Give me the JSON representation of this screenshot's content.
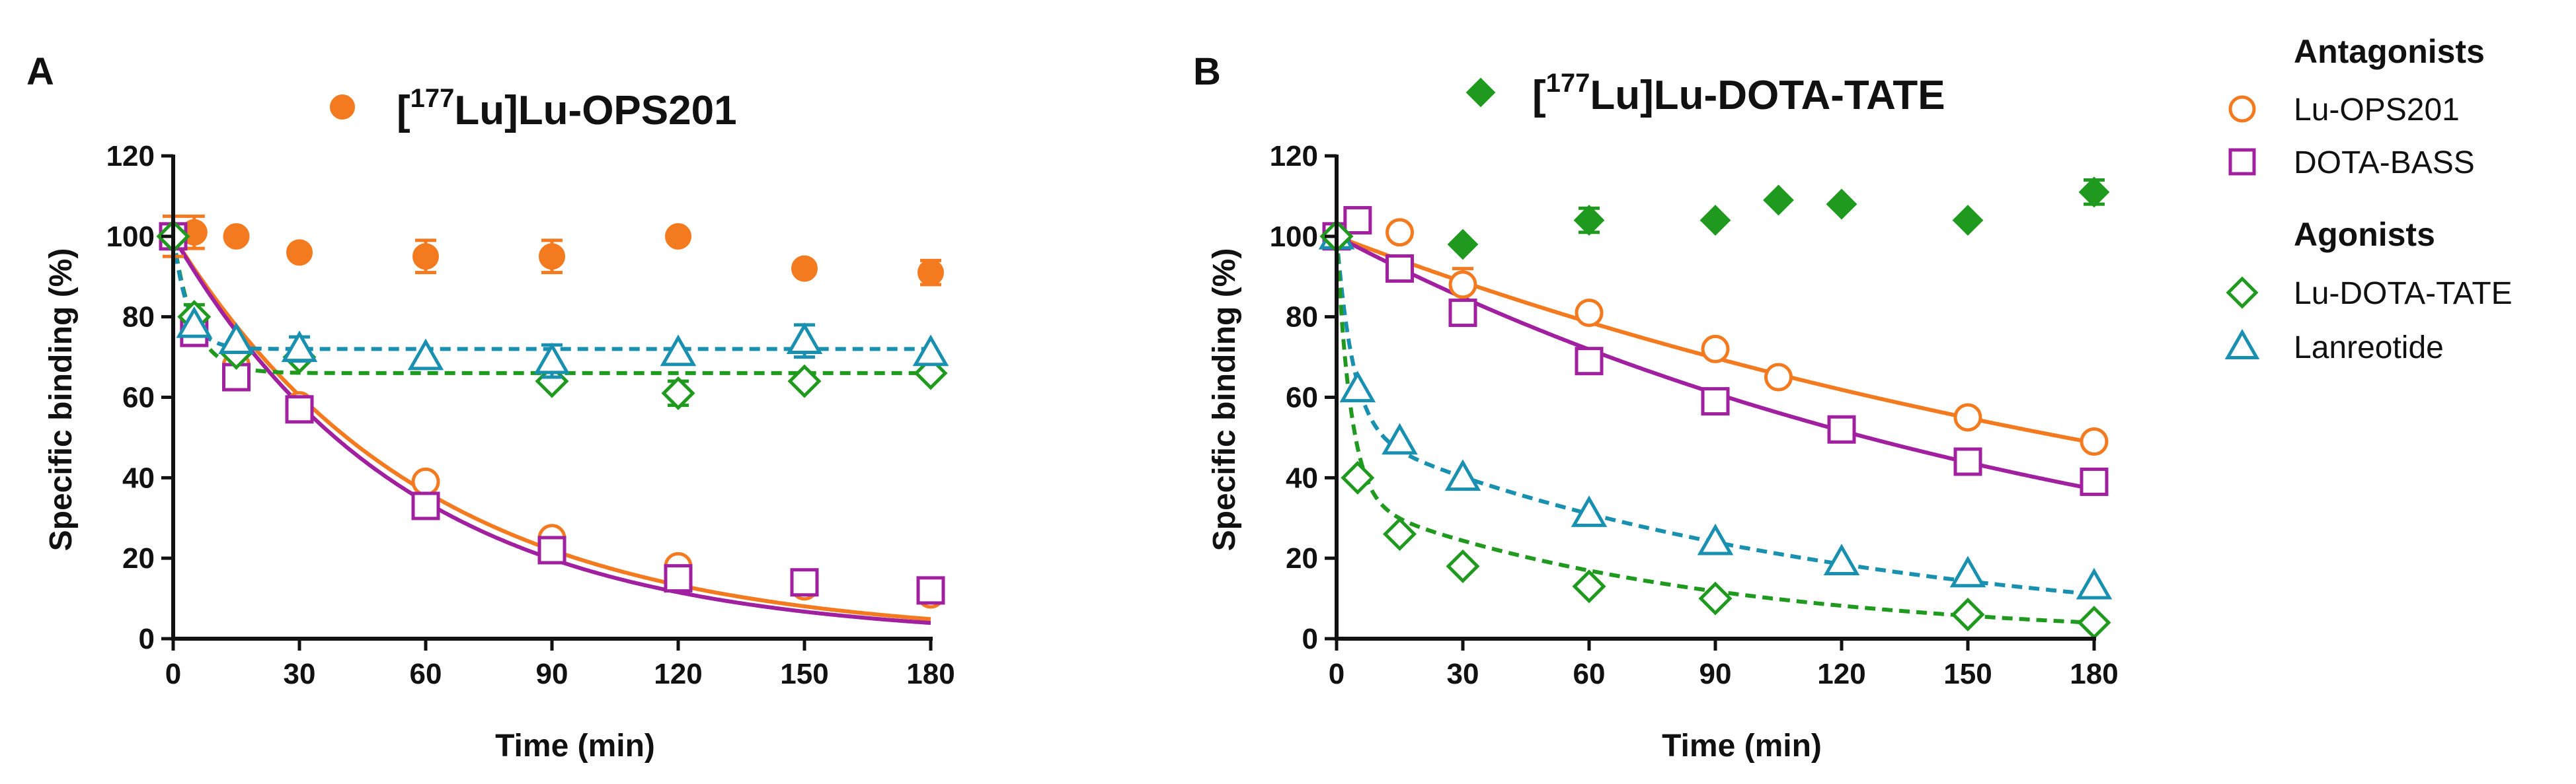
{
  "chart_data": [
    {
      "panel": "A",
      "type": "scatter",
      "title": {
        "bracket_open": "[",
        "superscript": "177",
        "rest": "Lu]Lu-OPS201"
      },
      "title_marker": {
        "shape": "circle-filled",
        "color": "#f47a20"
      },
      "xlabel": "Time (min)",
      "ylabel": "Specific binding (%)",
      "xlim": [
        0,
        180
      ],
      "ylim": [
        0,
        120
      ],
      "xticks": [
        0,
        30,
        60,
        90,
        120,
        150,
        180
      ],
      "yticks": [
        0,
        20,
        40,
        60,
        80,
        100,
        120
      ],
      "series": [
        {
          "name": "[177Lu]Lu-OPS201",
          "color": "#f47a20",
          "marker": "circle-filled",
          "points": [
            [
              0,
              100
            ],
            [
              5,
              101
            ],
            [
              15,
              100
            ],
            [
              30,
              96
            ],
            [
              60,
              95
            ],
            [
              90,
              95
            ],
            [
              120,
              100
            ],
            [
              150,
              92
            ],
            [
              180,
              91
            ]
          ],
          "errors": [
            5,
            4,
            0,
            0,
            4,
            4,
            0,
            0,
            3
          ]
        },
        {
          "name": "Lu-OPS201",
          "color": "#f47a20",
          "marker": "circle-open",
          "points": [
            [
              0,
              100
            ],
            [
              5,
              78
            ],
            [
              15,
              68
            ],
            [
              30,
              58
            ],
            [
              60,
              39
            ],
            [
              90,
              25
            ],
            [
              120,
              18
            ],
            [
              150,
              13
            ],
            [
              180,
              11
            ]
          ],
          "errors": [
            0,
            0,
            0,
            0,
            0,
            0,
            0,
            0,
            0
          ],
          "fit": {
            "kind": "exp-decay",
            "y0": 100,
            "plateau": 0,
            "k": 0.0168,
            "style": "solid"
          }
        },
        {
          "name": "DOTA-BASS",
          "color": "#a020a0",
          "marker": "square-open",
          "points": [
            [
              0,
              100
            ],
            [
              5,
              76
            ],
            [
              15,
              65
            ],
            [
              30,
              57
            ],
            [
              60,
              33
            ],
            [
              90,
              22
            ],
            [
              120,
              15
            ],
            [
              150,
              14
            ],
            [
              180,
              12
            ]
          ],
          "errors": [
            0,
            0,
            0,
            0,
            0,
            3,
            0,
            0,
            0
          ],
          "fit": {
            "kind": "exp-decay",
            "y0": 100,
            "plateau": 0,
            "k": 0.018,
            "style": "solid"
          }
        },
        {
          "name": "Lu-DOTA-TATE",
          "color": "#1f9a1f",
          "marker": "diamond-open",
          "points": [
            [
              0,
              100
            ],
            [
              5,
              80
            ],
            [
              15,
              71
            ],
            [
              30,
              70
            ],
            [
              90,
              64
            ],
            [
              120,
              61
            ],
            [
              150,
              64
            ],
            [
              180,
              66
            ]
          ],
          "errors": [
            0,
            3,
            0,
            0,
            0,
            3,
            0,
            0
          ],
          "fit": {
            "kind": "exp-decay",
            "y0": 100,
            "plateau": 66,
            "k": 0.2,
            "style": "dashed"
          }
        },
        {
          "name": "Lanreotide",
          "color": "#1a90b0",
          "marker": "triangle-open",
          "points": [
            [
              5,
              78
            ],
            [
              15,
              74
            ],
            [
              30,
              72
            ],
            [
              60,
              70
            ],
            [
              90,
              69
            ],
            [
              120,
              71
            ],
            [
              150,
              74
            ],
            [
              180,
              71
            ]
          ],
          "errors": [
            0,
            0,
            3,
            0,
            4,
            0,
            4,
            0
          ],
          "fit": {
            "kind": "exp-decay",
            "y0": 100,
            "plateau": 72,
            "k": 0.28,
            "style": "dashed"
          }
        }
      ]
    },
    {
      "panel": "B",
      "type": "scatter",
      "title": {
        "bracket_open": "[",
        "superscript": "177",
        "rest": "Lu]Lu-DOTA-TATE"
      },
      "title_marker": {
        "shape": "diamond-filled",
        "color": "#1f9a1f"
      },
      "xlabel": "Time (min)",
      "ylabel": "Specific binding (%)",
      "xlim": [
        0,
        180
      ],
      "ylim": [
        0,
        120
      ],
      "xticks": [
        0,
        30,
        60,
        90,
        120,
        150,
        180
      ],
      "yticks": [
        0,
        20,
        40,
        60,
        80,
        100,
        120
      ],
      "series": [
        {
          "name": "[177Lu]Lu-DOTA-TATE",
          "color": "#1f9a1f",
          "marker": "diamond-filled",
          "points": [
            [
              0,
              100
            ],
            [
              30,
              98
            ],
            [
              60,
              104
            ],
            [
              90,
              104
            ],
            [
              105,
              109
            ],
            [
              120,
              108
            ],
            [
              150,
              104
            ],
            [
              180,
              111
            ]
          ],
          "errors": [
            0,
            0,
            3,
            0,
            0,
            0,
            0,
            3
          ]
        },
        {
          "name": "Lu-OPS201",
          "color": "#f47a20",
          "marker": "circle-open",
          "points": [
            [
              0,
              100
            ],
            [
              5,
              104
            ],
            [
              15,
              101
            ],
            [
              30,
              88
            ],
            [
              60,
              81
            ],
            [
              90,
              72
            ],
            [
              105,
              65
            ],
            [
              150,
              55
            ],
            [
              180,
              49
            ]
          ],
          "errors": [
            0,
            0,
            0,
            4,
            0,
            0,
            0,
            0,
            0
          ],
          "fit": {
            "kind": "exp-decay",
            "y0": 100,
            "plateau": 0,
            "k": 0.004,
            "style": "solid"
          }
        },
        {
          "name": "DOTA-BASS",
          "color": "#a020a0",
          "marker": "square-open",
          "points": [
            [
              0,
              100
            ],
            [
              5,
              104
            ],
            [
              15,
              92
            ],
            [
              30,
              81
            ],
            [
              60,
              69
            ],
            [
              90,
              59
            ],
            [
              120,
              52
            ],
            [
              150,
              44
            ],
            [
              180,
              39
            ]
          ],
          "errors": [
            0,
            0,
            0,
            0,
            0,
            0,
            0,
            0,
            0
          ],
          "fit": {
            "kind": "exp-decay",
            "y0": 100,
            "plateau": 0,
            "k": 0.0055,
            "style": "solid"
          }
        },
        {
          "name": "Lanreotide",
          "color": "#1a90b0",
          "marker": "triangle-open",
          "points": [
            [
              0,
              100
            ],
            [
              5,
              62
            ],
            [
              15,
              49
            ],
            [
              30,
              40
            ],
            [
              60,
              31
            ],
            [
              90,
              24
            ],
            [
              120,
              19
            ],
            [
              150,
              16
            ],
            [
              180,
              13
            ]
          ],
          "errors": [
            0,
            0,
            0,
            0,
            0,
            0,
            0,
            0,
            0
          ],
          "fit": {
            "kind": "biexp-decay",
            "a1": 48,
            "k1": 0.25,
            "a2": 52,
            "k2": 0.0086,
            "style": "dashed"
          }
        },
        {
          "name": "Lu-DOTA-TATE",
          "color": "#1f9a1f",
          "marker": "diamond-open",
          "points": [
            [
              0,
              100
            ],
            [
              5,
              40
            ],
            [
              15,
              26
            ],
            [
              30,
              18
            ],
            [
              60,
              13
            ],
            [
              90,
              10
            ],
            [
              150,
              6
            ],
            [
              180,
              4
            ]
          ],
          "errors": [
            0,
            0,
            0,
            0,
            0,
            0,
            0,
            0
          ],
          "fit": {
            "kind": "biexp-decay",
            "a1": 65,
            "k1": 0.3,
            "a2": 35,
            "k2": 0.0121,
            "style": "dashed"
          }
        }
      ]
    }
  ],
  "legend": {
    "groups": [
      {
        "heading": "Antagonists",
        "items": [
          {
            "label": "Lu-OPS201",
            "marker": "circle-open",
            "color": "#f47a20"
          },
          {
            "label": "DOTA-BASS",
            "marker": "square-open",
            "color": "#a020a0"
          }
        ]
      },
      {
        "heading": "Agonists",
        "items": [
          {
            "label": "Lu-DOTA-TATE",
            "marker": "diamond-open",
            "color": "#1f9a1f"
          },
          {
            "label": "Lanreotide",
            "marker": "triangle-open",
            "color": "#1a90b0"
          }
        ]
      }
    ]
  }
}
